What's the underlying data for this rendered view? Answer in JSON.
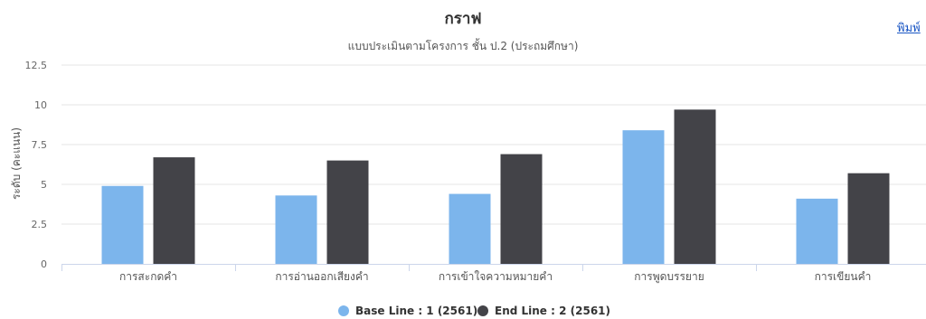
{
  "print_link": "พิมพ์",
  "chart_data": {
    "type": "bar",
    "title": "กราฟ",
    "subtitle": "แบบประเมินตามโครงการ ชั้น ป.2 (ประถมศึกษา)",
    "ylabel": "ระดับ (คะแนน)",
    "xlabel": "",
    "ylim": [
      0,
      12.5
    ],
    "yticks": [
      0,
      2.5,
      5,
      7.5,
      10,
      12.5
    ],
    "ytick_labels": [
      "0",
      "2.5",
      "5",
      "7.5",
      "10",
      "12.5"
    ],
    "categories": [
      "การสะกดคำ",
      "การอ่านออกเสียงคำ",
      "การเข้าใจความหมายคำ",
      "การพูดบรรยาย",
      "การเขียนคำ"
    ],
    "series": [
      {
        "name": "Base Line : 1 (2561)",
        "color": "#7cb5ec",
        "values": [
          4.9,
          4.3,
          4.4,
          8.4,
          4.1
        ]
      },
      {
        "name": "End Line : 2 (2561)",
        "color": "#434348",
        "values": [
          6.7,
          6.5,
          6.9,
          9.7,
          5.7
        ]
      }
    ],
    "grid": true,
    "legend": "bottom-center"
  }
}
